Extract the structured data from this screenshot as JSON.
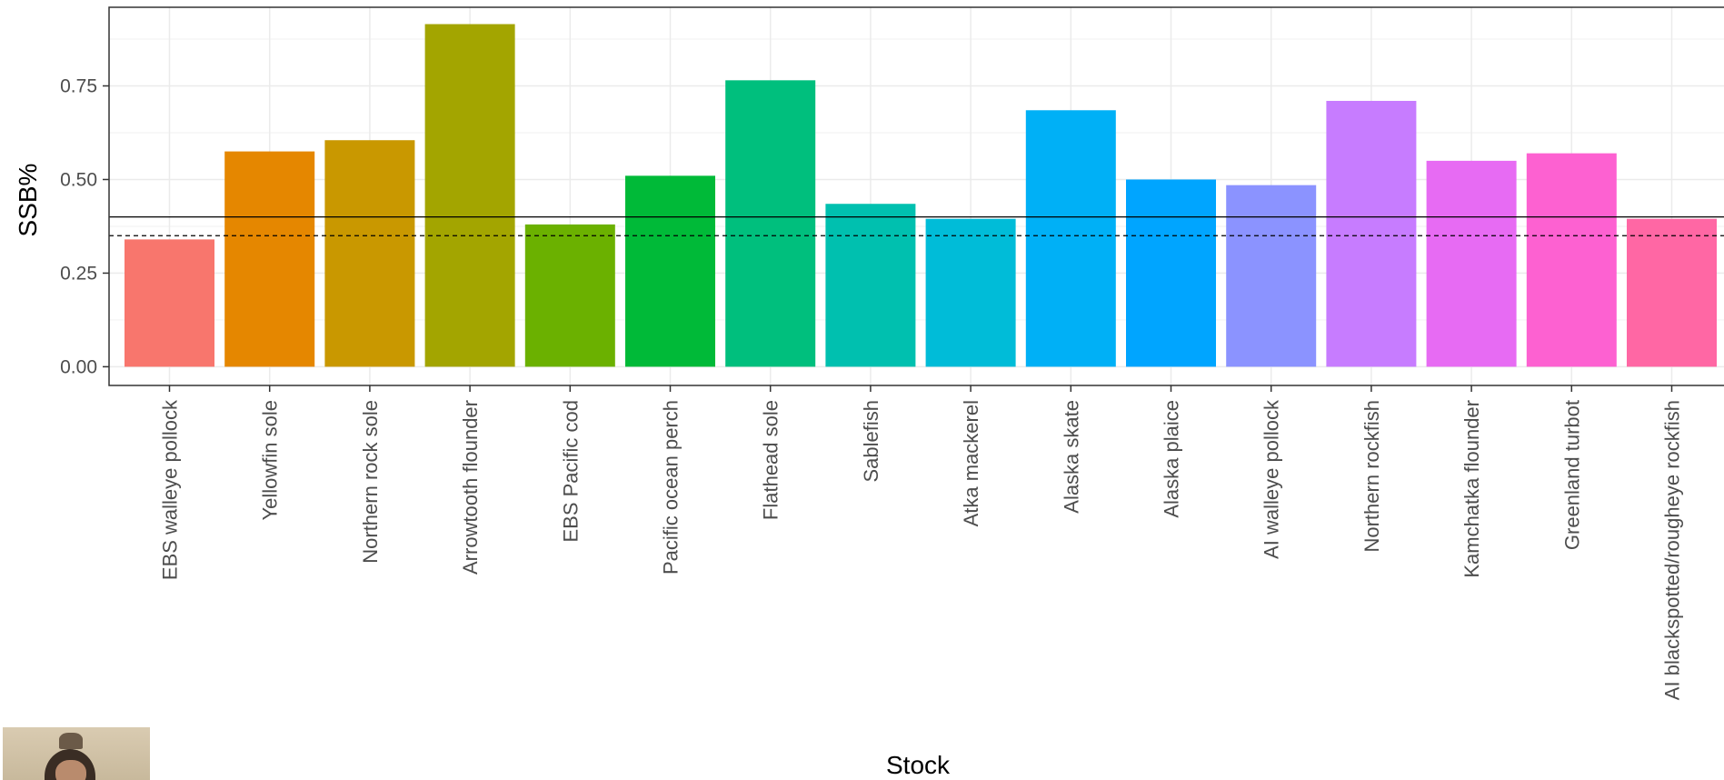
{
  "chart_data": {
    "type": "bar",
    "xlabel": "Stock",
    "ylabel": "SSB%",
    "ylim": [
      -0.05,
      0.96
    ],
    "yticks": [
      0.0,
      0.25,
      0.5,
      0.75
    ],
    "ytick_labels": [
      "0.00",
      "0.25",
      "0.50",
      "0.75"
    ],
    "categories": [
      "EBS walleye pollock",
      "Yellowfin sole",
      "Northern rock sole",
      "Arrowtooth flounder",
      "EBS Pacific cod",
      "Pacific ocean perch",
      "Flathead sole",
      "Sablefish",
      "Atka mackerel",
      "Alaska skate",
      "Alaska plaice",
      "AI walleye pollock",
      "Northern rockfish",
      "Kamchatka flounder",
      "Greenland turbot",
      "AI blackspotted/rougheye rockfish"
    ],
    "values": [
      0.34,
      0.575,
      0.605,
      0.915,
      0.38,
      0.51,
      0.765,
      0.435,
      0.395,
      0.685,
      0.5,
      0.485,
      0.71,
      0.55,
      0.57,
      0.395
    ],
    "colors": [
      "#F8766D",
      "#E58700",
      "#C99800",
      "#A3A500",
      "#6BB100",
      "#00BA38",
      "#00BF7D",
      "#00C0AF",
      "#00BCD8",
      "#00B0F6",
      "#00A5FF",
      "#8B93FF",
      "#C77CFF",
      "#E76BF3",
      "#FD61D1",
      "#FF67A4"
    ],
    "reference_lines": [
      {
        "y": 0.4,
        "style": "solid"
      },
      {
        "y": 0.35,
        "style": "dashed"
      }
    ],
    "grid": true,
    "legend": "none"
  }
}
